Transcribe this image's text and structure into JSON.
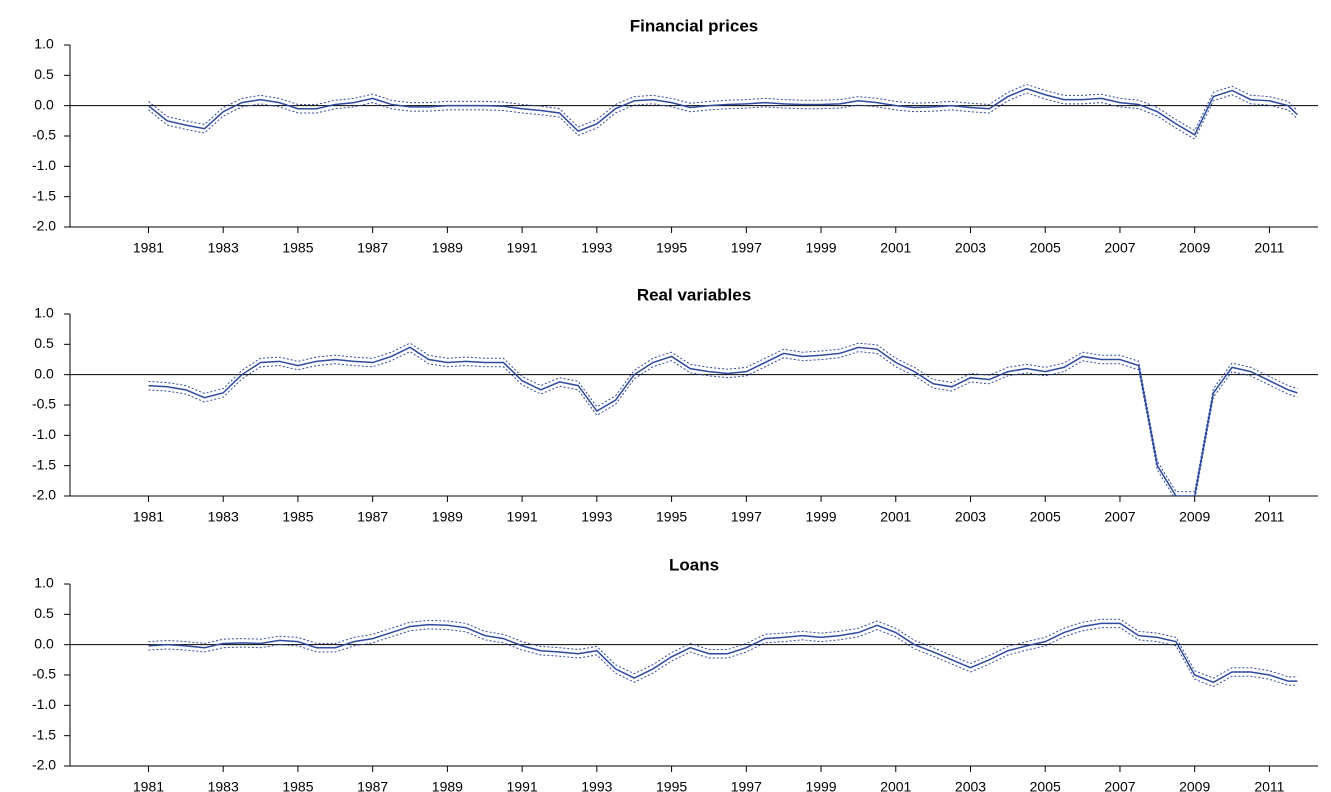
{
  "chart_data": [
    {
      "type": "line",
      "title": "Financial prices",
      "x": [
        1981,
        1981.5,
        1982,
        1982.5,
        1983,
        1983.5,
        1984,
        1984.5,
        1985,
        1985.5,
        1986,
        1986.5,
        1987,
        1987.5,
        1988,
        1988.5,
        1989,
        1989.5,
        1990,
        1990.5,
        1991,
        1991.5,
        1992,
        1992.5,
        1993,
        1993.5,
        1994,
        1994.5,
        1995,
        1995.5,
        1996,
        1996.5,
        1997,
        1997.5,
        1998,
        1998.5,
        1999,
        1999.5,
        2000,
        2000.5,
        2001,
        2001.5,
        2002,
        2002.5,
        2003,
        2003.5,
        2004,
        2004.5,
        2005,
        2005.5,
        2006,
        2006.5,
        2007,
        2007.5,
        2008,
        2008.5,
        2009,
        2009.5,
        2010,
        2010.5,
        2011,
        2011.5,
        2011.75
      ],
      "series": [
        {
          "color": "#2e4a9e",
          "style": "solid",
          "values": [
            0.0,
            -0.25,
            -0.32,
            -0.38,
            -0.1,
            0.05,
            0.1,
            0.05,
            -0.05,
            -0.05,
            0.02,
            0.05,
            0.12,
            0.02,
            -0.02,
            -0.02,
            0.0,
            0.0,
            0.0,
            -0.01,
            -0.05,
            -0.08,
            -0.12,
            -0.42,
            -0.3,
            -0.05,
            0.08,
            0.1,
            0.05,
            -0.03,
            0.0,
            0.02,
            0.03,
            0.05,
            0.03,
            0.02,
            0.02,
            0.03,
            0.08,
            0.05,
            0.0,
            -0.03,
            -0.02,
            0.0,
            -0.03,
            -0.05,
            0.15,
            0.28,
            0.18,
            0.1,
            0.1,
            0.12,
            0.05,
            0.02,
            -0.1,
            -0.3,
            -0.48,
            0.15,
            0.25,
            0.1,
            0.08,
            0.0,
            -0.15
          ]
        },
        {
          "color": "#2e4a9e",
          "style": "dotted",
          "values": [
            -0.07,
            -0.32,
            -0.39,
            -0.45,
            -0.17,
            -0.02,
            0.03,
            -0.02,
            -0.12,
            -0.12,
            -0.05,
            -0.02,
            0.05,
            -0.05,
            -0.09,
            -0.09,
            -0.07,
            -0.07,
            -0.07,
            -0.08,
            -0.12,
            -0.15,
            -0.19,
            -0.49,
            -0.37,
            -0.12,
            0.01,
            0.03,
            -0.02,
            -0.1,
            -0.07,
            -0.05,
            -0.04,
            -0.02,
            -0.04,
            -0.05,
            -0.05,
            -0.04,
            0.01,
            -0.02,
            -0.07,
            -0.1,
            -0.09,
            -0.07,
            -0.1,
            -0.12,
            0.08,
            0.21,
            0.11,
            0.03,
            0.03,
            0.05,
            -0.02,
            -0.05,
            -0.17,
            -0.37,
            -0.55,
            0.08,
            0.18,
            0.03,
            0.01,
            -0.07,
            -0.22
          ]
        },
        {
          "color": "#2e4a9e",
          "style": "dotted",
          "values": [
            0.07,
            -0.18,
            -0.25,
            -0.31,
            -0.03,
            0.12,
            0.17,
            0.12,
            0.02,
            0.02,
            0.09,
            0.12,
            0.19,
            0.09,
            0.05,
            0.05,
            0.07,
            0.07,
            0.07,
            0.06,
            0.02,
            -0.01,
            -0.05,
            -0.35,
            -0.23,
            0.02,
            0.15,
            0.17,
            0.12,
            0.04,
            0.07,
            0.09,
            0.1,
            0.12,
            0.1,
            0.09,
            0.09,
            0.1,
            0.15,
            0.12,
            0.07,
            0.04,
            0.05,
            0.07,
            0.04,
            0.02,
            0.22,
            0.35,
            0.25,
            0.17,
            0.17,
            0.19,
            0.12,
            0.09,
            -0.03,
            -0.23,
            -0.41,
            0.22,
            0.32,
            0.17,
            0.15,
            0.07,
            -0.08
          ]
        }
      ],
      "xlim": [
        1978.9,
        2012.3
      ],
      "xticks": [
        1981,
        1983,
        1985,
        1987,
        1989,
        1991,
        1993,
        1995,
        1997,
        1999,
        2001,
        2003,
        2005,
        2007,
        2009,
        2011
      ],
      "ylim": [
        -2,
        1
      ],
      "yticks": [
        {
          "value": -2,
          "label": "-2.0"
        },
        -1.5,
        {
          "value": -1,
          "label": "-1.0"
        },
        -0.5,
        {
          "value": 0,
          "label": "0.0"
        },
        0.5,
        {
          "value": 1,
          "label": "1.0"
        }
      ]
    },
    {
      "type": "line",
      "title": "Real variables",
      "x": [
        1981,
        1981.5,
        1982,
        1982.5,
        1983,
        1983.5,
        1984,
        1984.5,
        1985,
        1985.5,
        1986,
        1986.5,
        1987,
        1987.5,
        1988,
        1988.5,
        1989,
        1989.5,
        1990,
        1990.5,
        1991,
        1991.5,
        1992,
        1992.5,
        1993,
        1993.5,
        1994,
        1994.5,
        1995,
        1995.5,
        1996,
        1996.5,
        1997,
        1997.5,
        1998,
        1998.5,
        1999,
        1999.5,
        2000,
        2000.5,
        2001,
        2001.5,
        2002,
        2002.5,
        2003,
        2003.5,
        2004,
        2004.5,
        2005,
        2005.5,
        2006,
        2006.5,
        2007,
        2007.5,
        2008,
        2008.5,
        2009,
        2009.5,
        2010,
        2010.5,
        2011,
        2011.5,
        2011.75
      ],
      "series": [
        {
          "color": "#2e4a9e",
          "style": "solid",
          "values": [
            -0.18,
            -0.2,
            -0.25,
            -0.38,
            -0.3,
            0.0,
            0.2,
            0.22,
            0.15,
            0.22,
            0.25,
            0.22,
            0.2,
            0.3,
            0.45,
            0.25,
            0.2,
            0.22,
            0.2,
            0.2,
            -0.1,
            -0.25,
            -0.12,
            -0.18,
            -0.6,
            -0.42,
            0.0,
            0.2,
            0.3,
            0.1,
            0.05,
            0.02,
            0.05,
            0.2,
            0.35,
            0.3,
            0.32,
            0.35,
            0.45,
            0.42,
            0.2,
            0.05,
            -0.15,
            -0.2,
            -0.05,
            -0.08,
            0.05,
            0.1,
            0.05,
            0.12,
            0.3,
            0.25,
            0.25,
            0.15,
            -1.5,
            -2.0,
            -2.0,
            -0.3,
            0.12,
            0.05,
            -0.1,
            -0.25,
            -0.3
          ]
        },
        {
          "color": "#2e4a9e",
          "style": "dotted",
          "values": [
            -0.25,
            -0.27,
            -0.32,
            -0.45,
            -0.37,
            -0.07,
            0.13,
            0.15,
            0.08,
            0.15,
            0.18,
            0.15,
            0.13,
            0.23,
            0.38,
            0.18,
            0.13,
            0.15,
            0.13,
            0.13,
            -0.17,
            -0.32,
            -0.19,
            -0.25,
            -0.67,
            -0.49,
            -0.07,
            0.13,
            0.23,
            0.03,
            -0.02,
            -0.05,
            -0.02,
            0.13,
            0.28,
            0.23,
            0.25,
            0.28,
            0.38,
            0.35,
            0.13,
            -0.02,
            -0.22,
            -0.27,
            -0.12,
            -0.15,
            -0.02,
            0.03,
            -0.02,
            0.05,
            0.23,
            0.18,
            0.18,
            0.08,
            -1.57,
            -2.07,
            -2.07,
            -0.37,
            0.05,
            -0.02,
            -0.17,
            -0.32,
            -0.37
          ]
        },
        {
          "color": "#2e4a9e",
          "style": "dotted",
          "values": [
            -0.11,
            -0.13,
            -0.18,
            -0.31,
            -0.23,
            0.07,
            0.27,
            0.29,
            0.22,
            0.29,
            0.32,
            0.29,
            0.27,
            0.37,
            0.52,
            0.32,
            0.27,
            0.29,
            0.27,
            0.27,
            -0.03,
            -0.18,
            -0.05,
            -0.11,
            -0.53,
            -0.35,
            0.07,
            0.27,
            0.37,
            0.17,
            0.12,
            0.09,
            0.12,
            0.27,
            0.42,
            0.37,
            0.39,
            0.42,
            0.52,
            0.49,
            0.27,
            0.12,
            -0.08,
            -0.13,
            0.02,
            -0.01,
            0.12,
            0.17,
            0.12,
            0.19,
            0.37,
            0.32,
            0.32,
            0.22,
            -1.43,
            -1.93,
            -1.93,
            -0.23,
            0.19,
            0.12,
            -0.03,
            -0.18,
            -0.23
          ]
        }
      ],
      "xlim": [
        1978.9,
        2012.3
      ],
      "xticks": [
        1981,
        1983,
        1985,
        1987,
        1989,
        1991,
        1993,
        1995,
        1997,
        1999,
        2001,
        2003,
        2005,
        2007,
        2009,
        2011
      ],
      "ylim": [
        -2,
        1
      ],
      "yticks": [
        {
          "value": -2,
          "label": "-2.0"
        },
        -1.5,
        {
          "value": -1,
          "label": "-1.0"
        },
        -0.5,
        {
          "value": 0,
          "label": "0.0"
        },
        0.5,
        {
          "value": 1,
          "label": "1.0"
        }
      ]
    },
    {
      "type": "line",
      "title": "Loans",
      "x": [
        1981,
        1981.5,
        1982,
        1982.5,
        1983,
        1983.5,
        1984,
        1984.5,
        1985,
        1985.5,
        1986,
        1986.5,
        1987,
        1987.5,
        1988,
        1988.5,
        1989,
        1989.5,
        1990,
        1990.5,
        1991,
        1991.5,
        1992,
        1992.5,
        1993,
        1993.5,
        1994,
        1994.5,
        1995,
        1995.5,
        1996,
        1996.5,
        1997,
        1997.5,
        1998,
        1998.5,
        1999,
        1999.5,
        2000,
        2000.5,
        2001,
        2001.5,
        2002,
        2002.5,
        2003,
        2003.5,
        2004,
        2004.5,
        2005,
        2005.5,
        2006,
        2006.5,
        2007,
        2007.5,
        2008,
        2008.5,
        2009,
        2009.5,
        2010,
        2010.5,
        2011,
        2011.5,
        2011.75
      ],
      "series": [
        {
          "color": "#2e4a9e",
          "style": "solid",
          "values": [
            -0.02,
            0.0,
            -0.02,
            -0.05,
            0.02,
            0.03,
            0.02,
            0.07,
            0.05,
            -0.05,
            -0.05,
            0.05,
            0.1,
            0.2,
            0.3,
            0.33,
            0.32,
            0.28,
            0.15,
            0.1,
            -0.02,
            -0.1,
            -0.12,
            -0.15,
            -0.1,
            -0.4,
            -0.55,
            -0.4,
            -0.2,
            -0.05,
            -0.15,
            -0.15,
            -0.05,
            0.1,
            0.12,
            0.15,
            0.12,
            0.15,
            0.2,
            0.32,
            0.2,
            0.0,
            -0.12,
            -0.25,
            -0.38,
            -0.25,
            -0.1,
            -0.02,
            0.05,
            0.2,
            0.3,
            0.35,
            0.35,
            0.15,
            0.12,
            0.05,
            -0.5,
            -0.62,
            -0.45,
            -0.45,
            -0.5,
            -0.6,
            -0.6
          ]
        },
        {
          "color": "#2e4a9e",
          "style": "dotted",
          "values": [
            -0.09,
            -0.07,
            -0.09,
            -0.12,
            -0.05,
            -0.04,
            -0.05,
            0.0,
            -0.02,
            -0.12,
            -0.12,
            -0.02,
            0.03,
            0.13,
            0.23,
            0.26,
            0.25,
            0.21,
            0.08,
            0.03,
            -0.09,
            -0.17,
            -0.19,
            -0.22,
            -0.17,
            -0.47,
            -0.62,
            -0.47,
            -0.27,
            -0.12,
            -0.22,
            -0.22,
            -0.12,
            0.03,
            0.05,
            0.08,
            0.05,
            0.08,
            0.13,
            0.25,
            0.13,
            -0.07,
            -0.19,
            -0.32,
            -0.45,
            -0.32,
            -0.17,
            -0.09,
            -0.02,
            0.13,
            0.23,
            0.28,
            0.28,
            0.08,
            0.05,
            -0.02,
            -0.57,
            -0.69,
            -0.52,
            -0.52,
            -0.57,
            -0.67,
            -0.67
          ]
        },
        {
          "color": "#2e4a9e",
          "style": "dotted",
          "values": [
            0.05,
            0.07,
            0.05,
            0.02,
            0.09,
            0.1,
            0.09,
            0.14,
            0.12,
            0.02,
            0.02,
            0.12,
            0.17,
            0.27,
            0.37,
            0.4,
            0.39,
            0.35,
            0.22,
            0.17,
            0.05,
            -0.03,
            -0.05,
            -0.08,
            -0.03,
            -0.33,
            -0.48,
            -0.33,
            -0.13,
            0.02,
            -0.08,
            -0.08,
            0.02,
            0.17,
            0.19,
            0.22,
            0.19,
            0.22,
            0.27,
            0.39,
            0.27,
            0.07,
            -0.05,
            -0.18,
            -0.31,
            -0.18,
            -0.03,
            0.05,
            0.12,
            0.27,
            0.37,
            0.42,
            0.42,
            0.22,
            0.19,
            0.12,
            -0.43,
            -0.55,
            -0.38,
            -0.38,
            -0.43,
            -0.53,
            -0.53
          ]
        }
      ],
      "xlim": [
        1978.9,
        2012.3
      ],
      "xticks": [
        1981,
        1983,
        1985,
        1987,
        1989,
        1991,
        1993,
        1995,
        1997,
        1999,
        2001,
        2003,
        2005,
        2007,
        2009,
        2011
      ],
      "ylim": [
        -2,
        1
      ],
      "yticks": [
        {
          "value": -2,
          "label": "-2.0"
        },
        -1.5,
        {
          "value": -1,
          "label": "-1.0"
        },
        -0.5,
        {
          "value": 0,
          "label": "0.0"
        },
        0.5,
        {
          "value": 1,
          "label": "1.0"
        }
      ]
    }
  ]
}
